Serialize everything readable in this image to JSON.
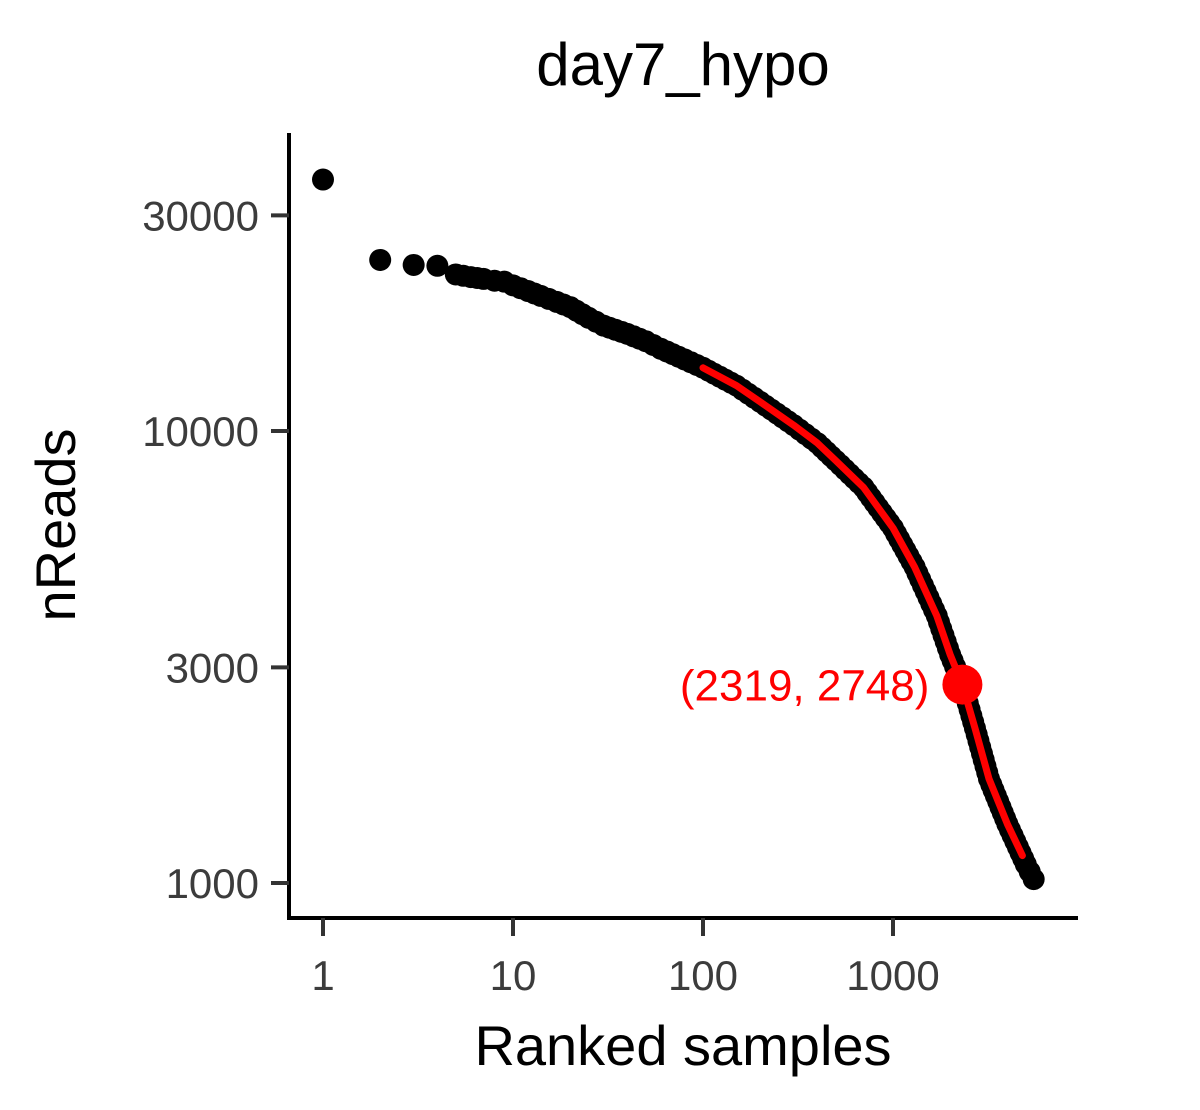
{
  "chart_data": {
    "type": "scatter",
    "title": "day7_hypo",
    "xlabel": "Ranked samples",
    "ylabel": "nReads",
    "x_scale": "log10",
    "y_scale": "log10",
    "xlim": [
      0.8,
      9000
    ],
    "ylim": [
      850,
      42000
    ],
    "x_ticks": [
      {
        "value": 1,
        "label": "1"
      },
      {
        "value": 10,
        "label": "10"
      },
      {
        "value": 100,
        "label": "100"
      },
      {
        "value": 1000,
        "label": "1000"
      }
    ],
    "y_ticks": [
      {
        "value": 1000,
        "label": "1000"
      },
      {
        "value": 3000,
        "label": "3000"
      },
      {
        "value": 10000,
        "label": "10000"
      },
      {
        "value": 30000,
        "label": "30000"
      }
    ],
    "grid": false,
    "series": [
      {
        "color": "#000000",
        "points": [
          [
            1,
            36000
          ],
          [
            2,
            23900
          ],
          [
            3,
            23300
          ],
          [
            4,
            23200
          ],
          [
            5,
            22200
          ],
          [
            6,
            21900
          ],
          [
            7,
            21700
          ],
          [
            8,
            21500
          ],
          [
            9,
            21400
          ],
          [
            10,
            21000
          ],
          [
            12,
            20400
          ],
          [
            14,
            19900
          ],
          [
            17,
            19300
          ],
          [
            20,
            18800
          ],
          [
            25,
            17800
          ],
          [
            30,
            17100
          ],
          [
            40,
            16400
          ],
          [
            50,
            15800
          ],
          [
            60,
            15200
          ],
          [
            80,
            14400
          ],
          [
            100,
            13800
          ],
          [
            150,
            12600
          ],
          [
            200,
            11600
          ],
          [
            300,
            10300
          ],
          [
            400,
            9400
          ],
          [
            500,
            8600
          ],
          [
            700,
            7500
          ],
          [
            1000,
            6100
          ],
          [
            1300,
            5000
          ],
          [
            1700,
            3900
          ],
          [
            2000,
            3200
          ],
          [
            2319,
            2748
          ],
          [
            2700,
            2200
          ],
          [
            3200,
            1700
          ],
          [
            4000,
            1350
          ],
          [
            5000,
            1100
          ],
          [
            5500,
            1020
          ]
        ]
      },
      {
        "color": "#ff0000",
        "points": [
          [
            100,
            13800
          ],
          [
            150,
            12600
          ],
          [
            200,
            11600
          ],
          [
            300,
            10300
          ],
          [
            400,
            9400
          ],
          [
            500,
            8600
          ],
          [
            700,
            7500
          ],
          [
            1000,
            6100
          ],
          [
            1300,
            5000
          ],
          [
            1700,
            3900
          ],
          [
            2000,
            3200
          ],
          [
            2319,
            2748
          ],
          [
            2700,
            2200
          ],
          [
            3200,
            1700
          ],
          [
            4000,
            1350
          ],
          [
            4800,
            1150
          ]
        ]
      }
    ],
    "highlight": {
      "x": 2319,
      "y": 2748,
      "label": "(2319, 2748)",
      "color": "#ff0000"
    }
  }
}
